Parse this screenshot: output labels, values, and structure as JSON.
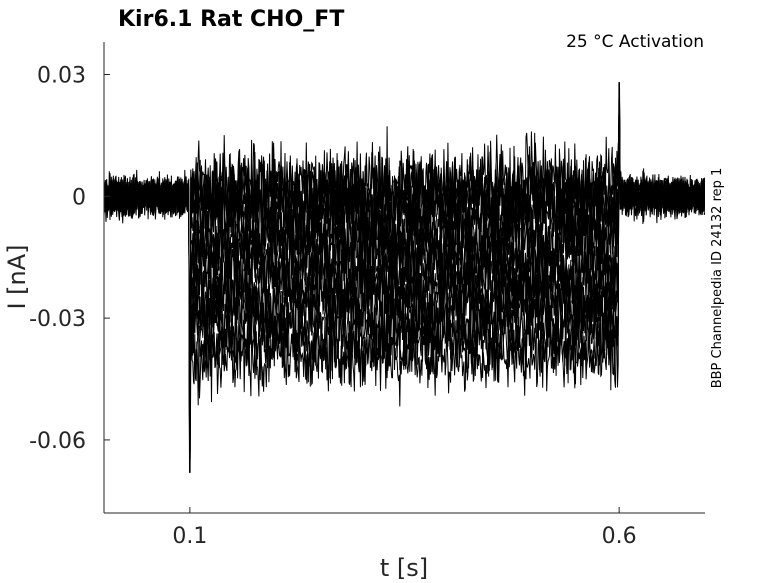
{
  "chart_data": {
    "type": "line",
    "title": "Kir6.1  Rat  CHO_FT",
    "annotation": "25 °C  Activation",
    "side_note": "BBP Channelpedia ID 24132 rep 1",
    "xlabel": "t [s]",
    "ylabel": "I [nA]",
    "xlim": [
      0.0,
      0.7
    ],
    "ylim": [
      -0.078,
      0.038
    ],
    "x_ticks": [
      0.1,
      0.6
    ],
    "x_tick_labels": [
      "0.1",
      "0.6"
    ],
    "y_ticks": [
      0.03,
      0,
      -0.03,
      -0.06
    ],
    "y_tick_labels": [
      "0.03",
      "0",
      "-0.03",
      "-0.06"
    ],
    "grid": false,
    "line_color": "#000000",
    "pulse": {
      "start": 0.1,
      "end": 0.6
    },
    "series": [
      {
        "step_level": 0.004
      },
      {
        "step_level": 0.002
      },
      {
        "step_level": 0.0
      },
      {
        "step_level": -0.002
      },
      {
        "step_level": -0.005
      },
      {
        "step_level": -0.008
      },
      {
        "step_level": -0.011
      },
      {
        "step_level": -0.014
      },
      {
        "step_level": -0.017
      },
      {
        "step_level": -0.02
      },
      {
        "step_level": -0.023
      },
      {
        "step_level": -0.026
      },
      {
        "step_level": -0.029
      },
      {
        "step_level": -0.032
      },
      {
        "step_level": -0.036
      },
      {
        "step_level": -0.04
      }
    ]
  }
}
